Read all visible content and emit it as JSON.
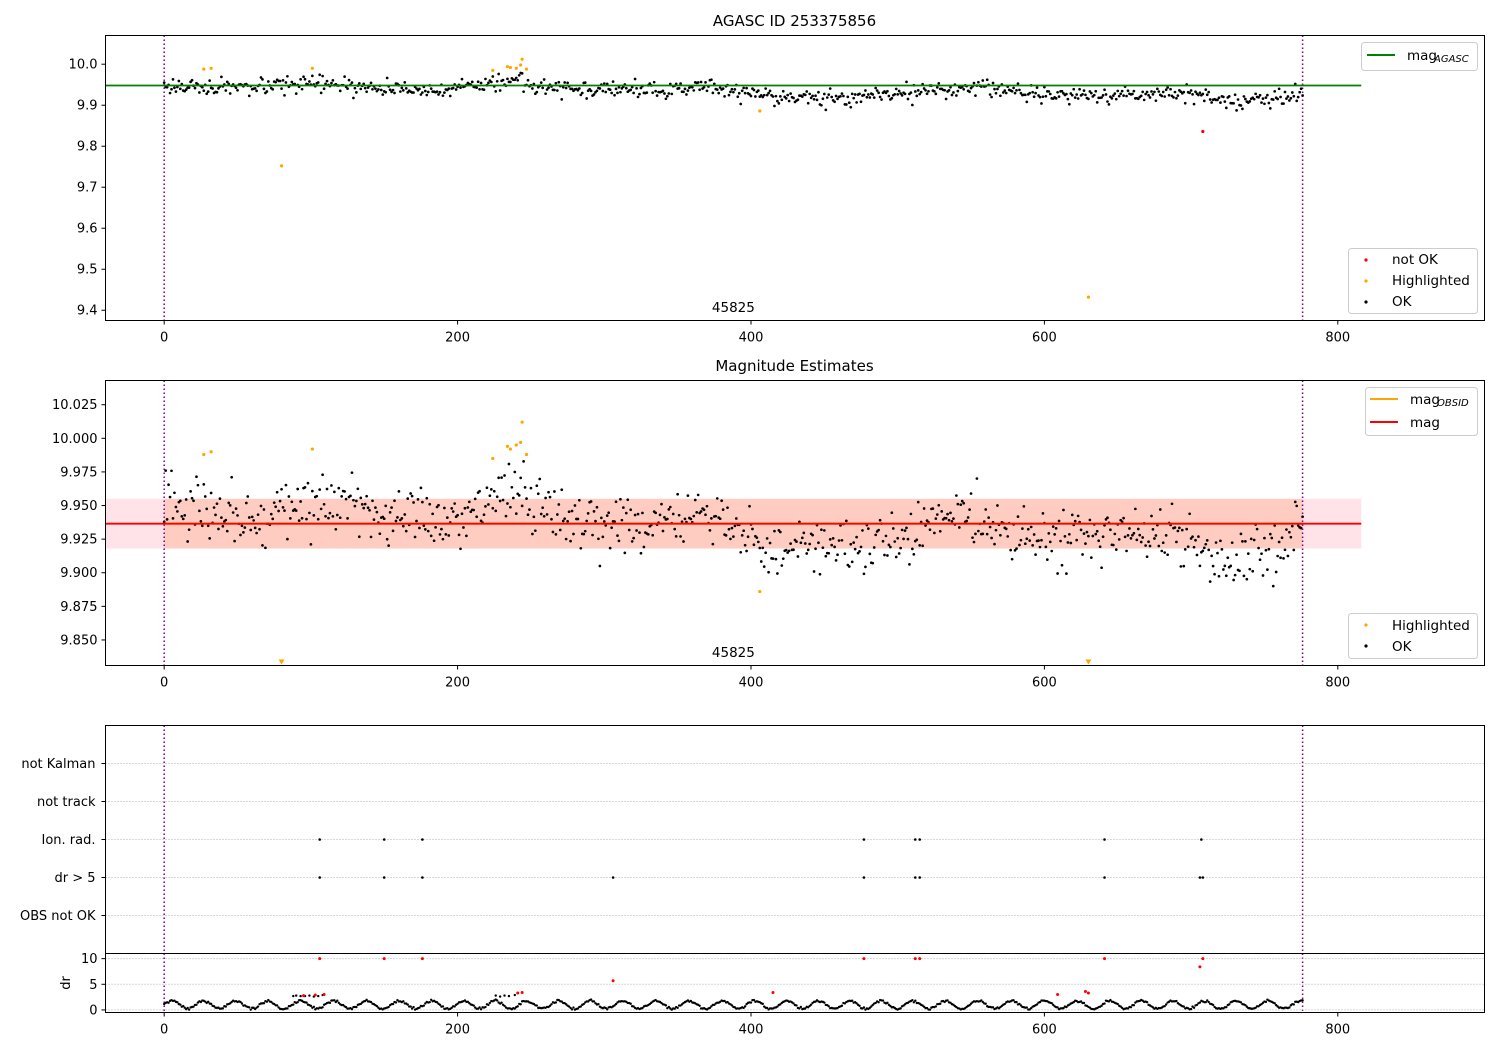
{
  "chart_data": [
    {
      "type": "scatter",
      "title": "AGASC ID 253375856",
      "xlim": [
        -40,
        900
      ],
      "ylim": [
        9.375,
        10.07
      ],
      "xticks": [
        0,
        200,
        400,
        600,
        800
      ],
      "yticks": [
        9.4,
        9.5,
        9.6,
        9.7,
        9.8,
        9.9,
        10.0
      ],
      "ytick_labels": [
        "9.4",
        "9.5",
        "9.6",
        "9.7",
        "9.8",
        "9.9",
        "10.0"
      ],
      "vlines": [
        0,
        776
      ],
      "obsid_label": "45825",
      "obsid_label_x": 388,
      "legend_upper": [
        {
          "name": "mag_AGASC",
          "label_main": "mag",
          "label_sub": "AGASC",
          "color": "#008000"
        }
      ],
      "legend_lower": [
        {
          "name": "not OK",
          "color": "#ff0000"
        },
        {
          "name": "Highlighted",
          "color": "#ffa500"
        },
        {
          "name": "OK",
          "color": "#000000"
        }
      ],
      "hline": {
        "name": "mag_AGASC",
        "value": 9.948,
        "x_range": [
          -40,
          816
        ],
        "color": "#008000"
      },
      "ok_trend": {
        "start": 0,
        "end": 776,
        "knots_x": [
          0,
          60,
          100,
          150,
          200,
          240,
          270,
          330,
          370,
          410,
          450,
          500,
          560,
          600,
          650,
          700,
          730,
          776
        ],
        "knots_y": [
          9.948,
          9.94,
          9.952,
          9.94,
          9.938,
          9.962,
          9.94,
          9.935,
          9.945,
          9.922,
          9.918,
          9.928,
          9.945,
          9.925,
          9.925,
          9.93,
          9.905,
          9.93
        ],
        "noise": 0.011
      },
      "highlighted_points": [
        [
          27,
          9.988
        ],
        [
          32,
          9.99
        ],
        [
          80,
          9.752
        ],
        [
          101,
          9.99
        ],
        [
          224,
          9.985
        ],
        [
          234,
          9.994
        ],
        [
          236,
          9.992
        ],
        [
          240,
          9.99
        ],
        [
          243,
          9.998
        ],
        [
          244,
          10.012
        ],
        [
          247,
          9.988
        ],
        [
          406,
          9.886
        ],
        [
          630,
          9.432
        ]
      ],
      "not_ok_points": [
        [
          708,
          9.836
        ]
      ]
    },
    {
      "type": "scatter",
      "title": "Magnitude Estimates",
      "xlim": [
        -40,
        900
      ],
      "ylim": [
        9.831,
        10.043
      ],
      "xticks": [
        0,
        200,
        400,
        600,
        800
      ],
      "yticks": [
        9.85,
        9.875,
        9.9,
        9.925,
        9.95,
        9.975,
        10.0,
        10.025
      ],
      "ytick_labels": [
        "9.850",
        "9.875",
        "9.900",
        "9.925",
        "9.950",
        "9.975",
        "10.000",
        "10.025"
      ],
      "vlines": [
        0,
        776
      ],
      "obsid_label": "45825",
      "obsid_label_x": 388,
      "legend_upper": [
        {
          "name": "mag_OBSID",
          "label_main": "mag",
          "label_sub": "OBSID",
          "color": "#ffa500"
        },
        {
          "name": "mag",
          "label_main": "mag",
          "label_sub": "",
          "color": "#ff0000"
        }
      ],
      "legend_lower": [
        {
          "name": "Highlighted",
          "color": "#ffa500"
        },
        {
          "name": "OK",
          "color": "#000000"
        }
      ],
      "hline": {
        "name": "mag",
        "value": 9.9365,
        "x_range": [
          -40,
          816
        ],
        "color": "#ff0000"
      },
      "obsid_line": {
        "value": 9.9365,
        "x_range": [
          0,
          776
        ],
        "color": "#ffa500"
      },
      "band_outer": {
        "y": [
          9.918,
          9.955
        ],
        "x_range": [
          -40,
          816
        ],
        "color": "#ffc0cb"
      },
      "band_inner": {
        "y": [
          9.918,
          9.955
        ],
        "x_range": [
          0,
          776
        ],
        "color": "#ffa07a"
      },
      "ok_trend": {
        "start": 0,
        "end": 776,
        "knots_x": [
          0,
          30,
          60,
          100,
          150,
          200,
          230,
          270,
          330,
          370,
          410,
          450,
          500,
          540,
          560,
          600,
          650,
          700,
          730,
          776
        ],
        "knots_y": [
          9.955,
          9.945,
          9.935,
          9.955,
          9.94,
          9.935,
          9.965,
          9.94,
          9.935,
          9.945,
          9.915,
          9.92,
          9.925,
          9.945,
          9.935,
          9.925,
          9.93,
          9.92,
          9.905,
          9.935
        ],
        "noise": 0.012
      },
      "highlighted_points": [
        [
          27,
          9.988
        ],
        [
          32,
          9.99
        ],
        [
          101,
          9.992
        ],
        [
          224,
          9.985
        ],
        [
          234,
          9.994
        ],
        [
          236,
          9.992
        ],
        [
          240,
          9.995
        ],
        [
          243,
          9.997
        ],
        [
          244,
          10.012
        ],
        [
          247,
          9.988
        ],
        [
          406,
          9.886
        ]
      ],
      "offscale_markers": [
        {
          "x": 80,
          "color": "#ffa500"
        },
        {
          "x": 630,
          "color": "#ffa500"
        }
      ]
    },
    {
      "type": "scatter",
      "title": "",
      "xlim": [
        -40,
        900
      ],
      "xticks": [
        0,
        200,
        400,
        600,
        800
      ],
      "vlines": [
        0,
        776
      ],
      "flags": {
        "categories": [
          "OBS not OK",
          "dr > 5",
          "Ion. rad.",
          "not track",
          "not Kalman"
        ],
        "ion_rad_x": [
          106,
          150,
          176,
          477,
          512,
          515,
          641,
          707
        ],
        "dr_gt5_x": [
          106,
          150,
          176,
          306,
          477,
          512,
          515,
          641,
          706,
          708
        ],
        "not_track_x": [],
        "not_kalman_x": [],
        "obs_not_ok_x": []
      },
      "dr": {
        "ylabel": "dr",
        "ylim": [
          -0.5,
          11
        ],
        "yticks": [
          0,
          5,
          10
        ],
        "ytick_labels": [
          "0",
          "5",
          "10"
        ],
        "ok_trend": {
          "start": 0,
          "end": 776,
          "base": 1.0,
          "amp": 0.9,
          "period": 22
        },
        "plateau_points": [
          [
            88,
            2.7
          ],
          [
            90,
            2.8
          ],
          [
            93,
            2.7
          ],
          [
            96,
            2.7
          ],
          [
            99,
            2.8
          ],
          [
            102,
            2.6
          ],
          [
            105,
            2.7
          ],
          [
            108,
            2.9
          ],
          [
            226,
            2.8
          ],
          [
            229,
            2.6
          ],
          [
            232,
            2.8
          ],
          [
            235,
            2.7
          ],
          [
            239,
            2.9
          ]
        ],
        "red_points": [
          [
            106,
            10.0
          ],
          [
            150,
            10.0
          ],
          [
            176,
            10.0
          ],
          [
            306,
            5.7
          ],
          [
            415,
            3.4
          ],
          [
            477,
            10.0
          ],
          [
            512,
            10.0
          ],
          [
            515,
            10.0
          ],
          [
            609,
            3.0
          ],
          [
            628,
            3.6
          ],
          [
            630,
            3.3
          ],
          [
            641,
            10.0
          ],
          [
            706,
            8.4
          ],
          [
            708,
            10.0
          ],
          [
            95,
            2.8
          ],
          [
            103,
            2.9
          ],
          [
            109,
            3.0
          ],
          [
            241,
            3.3
          ],
          [
            244,
            3.4
          ]
        ]
      }
    }
  ]
}
